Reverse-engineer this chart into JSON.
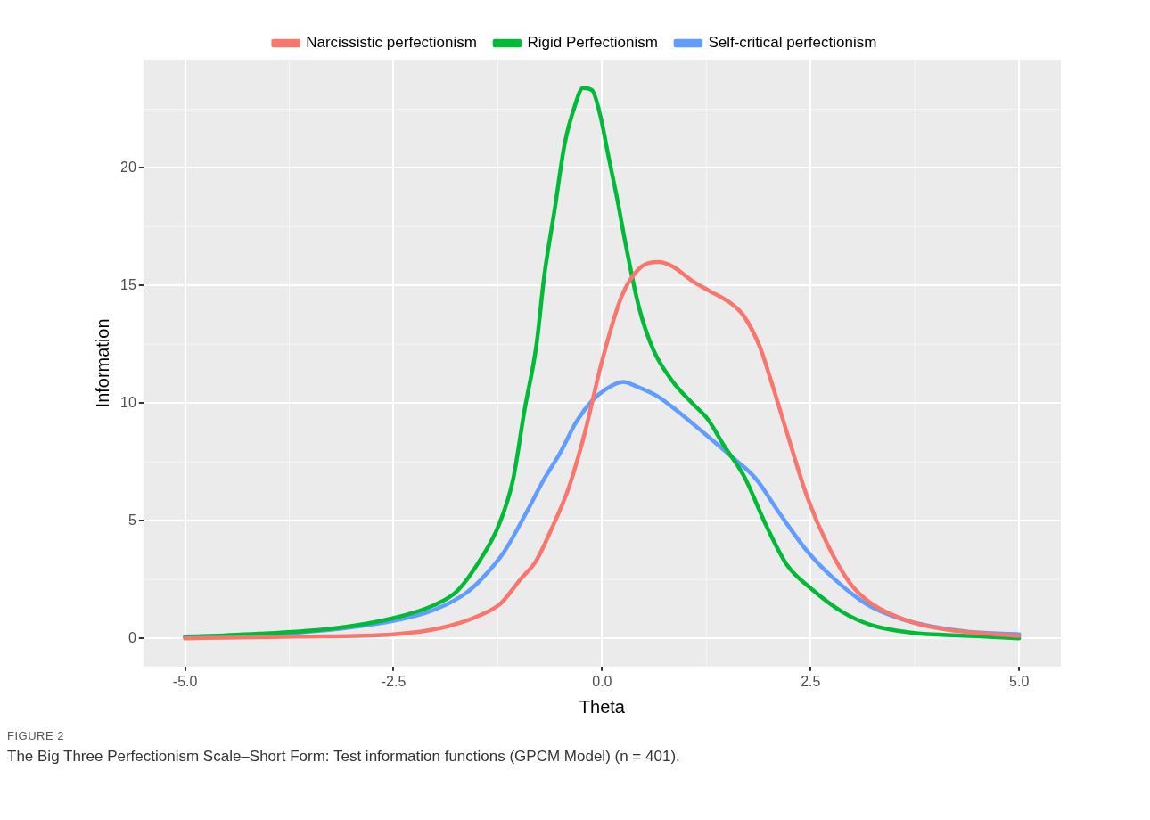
{
  "chart_data": {
    "type": "line",
    "xlabel": "Theta",
    "ylabel": "Information",
    "xlim": [
      -5.5,
      5.5
    ],
    "ylim": [
      -1.2,
      24.6
    ],
    "xticks": [
      {
        "value": -5,
        "label": "-5.0"
      },
      {
        "value": -2.5,
        "label": "-2.5"
      },
      {
        "value": 0,
        "label": "0.0"
      },
      {
        "value": 2.5,
        "label": "2.5"
      },
      {
        "value": 5,
        "label": "5.0"
      }
    ],
    "yticks": [
      0,
      5,
      10,
      15,
      20
    ],
    "grid": true,
    "legend": "top",
    "marker": "none",
    "line_style": "solid",
    "series": [
      {
        "name": "Narcissistic perfectionism",
        "color": "#f8766d",
        "x": [
          -5,
          -3.64,
          -2.5,
          -1.93,
          -1.45,
          -1.21,
          -0.98,
          -0.79,
          -0.6,
          -0.4,
          -0.21,
          0,
          0.23,
          0.44,
          0.68,
          0.85,
          1.08,
          1.27,
          1.56,
          1.7,
          1.89,
          2.03,
          2.22,
          2.46,
          2.7,
          2.98,
          3.22,
          3.7,
          4.17,
          5
        ],
        "values": [
          0,
          0.07,
          0.17,
          0.44,
          1.0,
          1.5,
          2.5,
          3.3,
          4.7,
          6.4,
          8.7,
          11.8,
          14.5,
          15.7,
          16.0,
          15.8,
          15.2,
          14.8,
          14.2,
          13.7,
          12.4,
          10.9,
          8.7,
          6.0,
          4.0,
          2.3,
          1.5,
          0.7,
          0.35,
          0.1
        ]
      },
      {
        "name": "Rigid Perfectionism",
        "color": "#00ba38",
        "x": [
          -5,
          -4.12,
          -3.26,
          -2.5,
          -2.02,
          -1.74,
          -1.45,
          -1.24,
          -1.07,
          -0.93,
          -0.79,
          -0.69,
          -0.57,
          -0.45,
          -0.33,
          -0.23,
          -0.12,
          -0.02,
          0.07,
          0.18,
          0.28,
          0.44,
          0.61,
          0.85,
          1.08,
          1.27,
          1.46,
          1.7,
          1.98,
          2.22,
          2.51,
          2.89,
          3.22,
          3.7,
          4.41,
          5
        ],
        "values": [
          0.05,
          0.19,
          0.4,
          0.86,
          1.4,
          2.0,
          3.4,
          4.8,
          6.7,
          9.7,
          12.4,
          15.5,
          18.2,
          21.0,
          22.6,
          23.4,
          23.3,
          22.2,
          20.6,
          18.7,
          16.8,
          14.1,
          12.3,
          10.9,
          10.0,
          9.3,
          8.2,
          6.9,
          4.7,
          3.1,
          2.1,
          1.1,
          0.57,
          0.24,
          0.1,
          0
        ]
      },
      {
        "name": "Self-critical perfectionism",
        "color": "#619cff",
        "x": [
          -5,
          -3.64,
          -2.5,
          -2.02,
          -1.64,
          -1.45,
          -1.17,
          -0.93,
          -0.69,
          -0.5,
          -0.31,
          -0.12,
          0.05,
          0.25,
          0.42,
          0.66,
          0.89,
          1.23,
          1.56,
          1.84,
          2.13,
          2.46,
          2.79,
          3.17,
          3.55,
          3.93,
          4.41,
          5
        ],
        "values": [
          0.07,
          0.24,
          0.74,
          1.2,
          1.9,
          2.5,
          3.7,
          5.2,
          6.8,
          7.9,
          9.2,
          10.1,
          10.6,
          10.9,
          10.7,
          10.3,
          9.7,
          8.7,
          7.7,
          6.8,
          5.3,
          3.7,
          2.5,
          1.45,
          0.86,
          0.52,
          0.27,
          0.17
        ]
      }
    ],
    "annotations": [
      "FIGURE 2",
      "The Big Three Perfectionism Scale–Short Form: Test information functions (GPCM Model) (n = 401)."
    ]
  }
}
